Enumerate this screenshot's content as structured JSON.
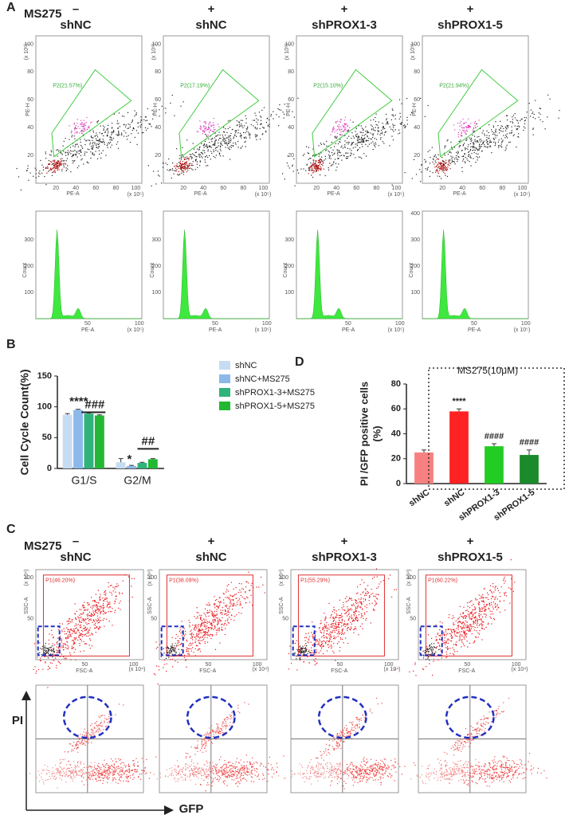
{
  "panel_labels": [
    "A",
    "B",
    "C",
    "D"
  ],
  "panel_a": {
    "treatment_label": "MS275",
    "columns": [
      {
        "sign": "–",
        "name": "shNC",
        "gate": "P2(21.57%)"
      },
      {
        "sign": "+",
        "name": "shNC",
        "gate": "P2(17.19%)"
      },
      {
        "sign": "+",
        "name": "shPROX1-3",
        "gate": "P2(15.10%)"
      },
      {
        "sign": "+",
        "name": "shPROX1-5",
        "gate": "P2(21.94%)"
      }
    ],
    "scatter": {
      "x_label": "PE-A",
      "y_label": "PE-H",
      "scale": "(x 10⁵)",
      "ticks": [
        "20",
        "40",
        "60",
        "80",
        "100"
      ]
    },
    "histogram": {
      "x_label": "PE-A",
      "y_label": "Count",
      "scale": "(x 10⁵)",
      "x_ticks": [
        "50",
        "100"
      ],
      "y_ticks": [
        [
          "100",
          "200",
          "300"
        ],
        [
          "100",
          "200",
          "300"
        ],
        [
          "100",
          "200",
          "300"
        ],
        [
          "100",
          "200",
          "300",
          "400"
        ]
      ]
    }
  },
  "panel_c": {
    "treatment_label": "MS275",
    "columns": [
      {
        "sign": "–",
        "name": "shNC",
        "gate": "P1(46.20%)"
      },
      {
        "sign": "+",
        "name": "shNC",
        "gate": "P1(38.09%)"
      },
      {
        "sign": "+",
        "name": "shPROX1-3",
        "gate": "P1(55.29%)"
      },
      {
        "sign": "+",
        "name": "shPROX1-5",
        "gate": "P1(60.22%)"
      }
    ],
    "scatter": {
      "x_label": "FSC-A",
      "y_label": "SSC-A",
      "scale": "(x 10⁴)",
      "ticks": [
        "50",
        "100"
      ]
    },
    "y_axis": "PI",
    "x_axis": "GFP"
  },
  "chart_data": [
    {
      "type": "bar",
      "y_label": "Cell Cycle Count(%)",
      "categories": [
        "G1/S",
        "G2/M"
      ],
      "series": [
        {
          "name": "shNC",
          "color": "#c6dcf3",
          "values": [
            87,
            10
          ],
          "errors": [
            2,
            6
          ]
        },
        {
          "name": "shNC+MS275",
          "color": "#8cb9ea",
          "values": [
            95,
            4
          ],
          "errors": [
            1,
            1
          ]
        },
        {
          "name": "shPROX1-3+MS275",
          "color": "#2fb37a",
          "values": [
            89,
            9
          ],
          "errors": [
            1,
            1
          ]
        },
        {
          "name": "shPROX1-5+MS275",
          "color": "#22b833",
          "values": [
            86,
            15
          ],
          "errors": [
            1,
            1
          ]
        }
      ],
      "ylim": [
        0,
        150
      ],
      "yticks": [
        0,
        50,
        100,
        150
      ],
      "annotations": [
        "****",
        "###",
        "*",
        "##"
      ]
    },
    {
      "type": "bar",
      "title": "MS275(10μM)",
      "y_label": [
        "PI /GFP positive cells",
        "(%)"
      ],
      "categories": [
        "shNC",
        "shNC",
        "shPROX1-3",
        "shPROX1-5"
      ],
      "values": [
        25,
        58,
        30,
        23
      ],
      "errors": [
        2,
        2,
        2,
        4
      ],
      "colors": [
        "#f88080",
        "#ff2222",
        "#22cc22",
        "#1b8a2b"
      ],
      "ylim": [
        0,
        80
      ],
      "yticks": [
        0,
        20,
        40,
        60,
        80
      ],
      "annotations": [
        "****",
        "####",
        "####"
      ]
    }
  ]
}
